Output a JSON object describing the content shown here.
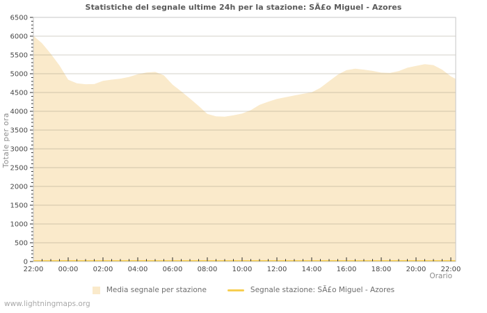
{
  "page": {
    "background": "#ffffff",
    "watermark": "www.lightningmaps.org"
  },
  "chart": {
    "title": "Statistiche del segnale ultime 24h per la stazione: SÃ£o Miguel - Azores",
    "x_axis_label": "Orario",
    "y_axis_label": "Totale per ora"
  },
  "legend": {
    "items": [
      {
        "label": "Media segnale per stazione",
        "swatch": "area",
        "color": "#faeacb"
      },
      {
        "label": "Segnale stazione: SÃ£o Miguel - Azores",
        "swatch": "line",
        "color": "#f7ce50"
      }
    ]
  },
  "chart_data": {
    "type": "area",
    "title": "Statistiche del segnale ultime 24h per la stazione: SÃ£o Miguel - Azores",
    "xlabel": "Orario",
    "ylabel": "Totale per ora",
    "ylim": [
      0,
      6500
    ],
    "y_major_tick_step": 500,
    "y_minor_tick_step": 100,
    "x_span_hours": 24,
    "x_minor_tick_hours": 0.5,
    "x_major_tick_hours": 2,
    "x_tick_labels": [
      "22:00",
      "00:00",
      "02:00",
      "04:00",
      "06:00",
      "08:00",
      "10:00",
      "12:00",
      "14:00",
      "16:00",
      "18:00",
      "20:00",
      "22:00"
    ],
    "grid": "horizontal",
    "legend_position": "bottom",
    "colors": {
      "area_fill": "#faeacb",
      "station_line": "#f7ce50",
      "gridline": "#978e7d",
      "plot_border": "#c6c6c6",
      "tick": "#2a2a2a",
      "tick_label": "#474747"
    },
    "series": [
      {
        "name": "Media segnale per stazione",
        "render": "area",
        "color": "#faeacb",
        "x_hours": [
          0,
          0.5,
          1,
          1.5,
          2,
          2.5,
          3,
          3.5,
          4,
          4.5,
          5,
          5.5,
          6,
          6.5,
          7,
          7.5,
          8,
          8.5,
          9,
          9.5,
          10,
          10.5,
          11,
          11.5,
          12,
          12.5,
          13,
          13.5,
          14,
          14.5,
          15,
          15.5,
          16,
          16.5,
          17,
          17.5,
          18,
          18.5,
          19,
          19.5,
          20,
          20.5,
          21,
          21.5,
          22,
          22.5,
          23,
          23.5,
          24,
          24.3
        ],
        "values": [
          6010,
          5810,
          5530,
          5220,
          4840,
          4745,
          4720,
          4725,
          4810,
          4842,
          4868,
          4915,
          4985,
          5032,
          5048,
          4958,
          4712,
          4530,
          4340,
          4140,
          3932,
          3866,
          3856,
          3892,
          3940,
          4030,
          4170,
          4255,
          4330,
          4375,
          4420,
          4465,
          4505,
          4625,
          4800,
          4975,
          5095,
          5135,
          5110,
          5075,
          5030,
          5020,
          5070,
          5160,
          5210,
          5255,
          5230,
          5110,
          4930,
          4855
        ]
      },
      {
        "name": "Segnale stazione: SÃ£o Miguel - Azores",
        "render": "line",
        "color": "#f7ce50",
        "x_hours": [
          0,
          24.3
        ],
        "values": [
          0,
          0
        ]
      }
    ]
  }
}
